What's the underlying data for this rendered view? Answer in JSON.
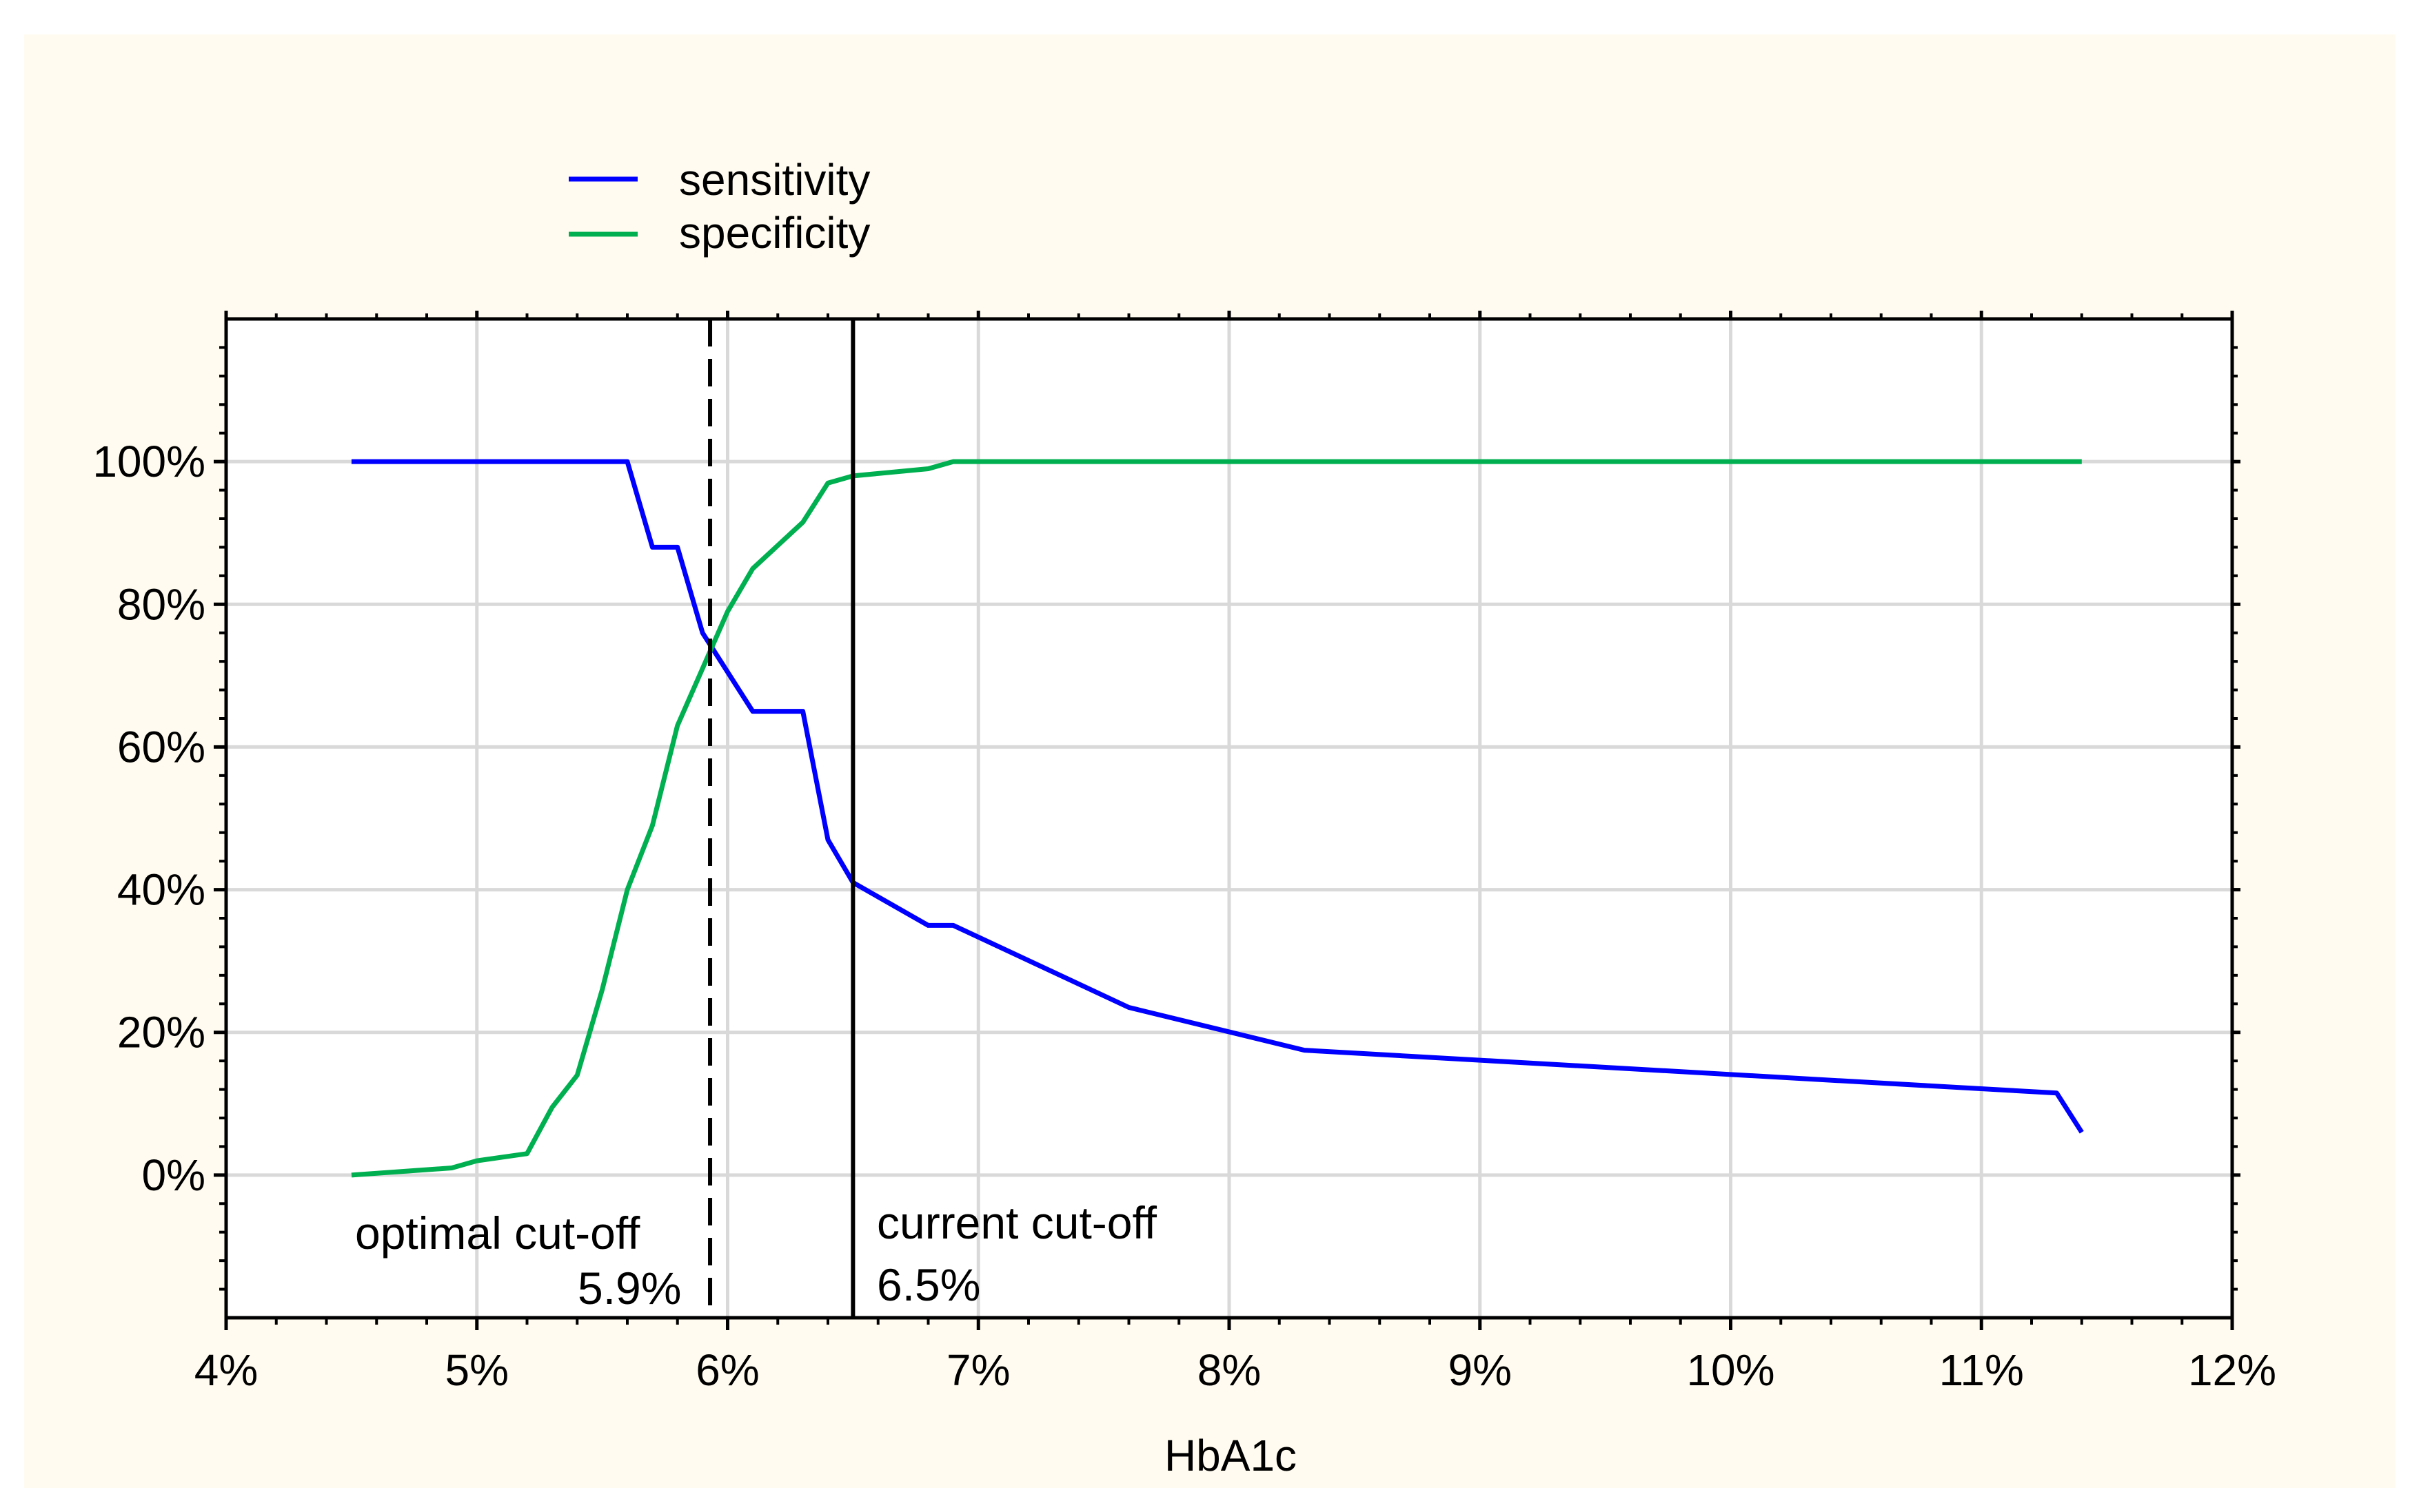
{
  "chart_data": {
    "type": "line",
    "xlabel": "HbA1c",
    "ylabel": "",
    "xlim": [
      4,
      12
    ],
    "ylim": [
      -20,
      120
    ],
    "x_tick_values": [
      4,
      5,
      6,
      7,
      8,
      9,
      10,
      11,
      12
    ],
    "x_tick_labels": [
      "4%",
      "5%",
      "6%",
      "7%",
      "8%",
      "9%",
      "10%",
      "11%",
      "12%"
    ],
    "y_tick_values": [
      0,
      20,
      40,
      60,
      80,
      100
    ],
    "y_tick_labels": [
      "0%",
      "20%",
      "40%",
      "60%",
      "80%",
      "100%"
    ],
    "grid": true,
    "legend_position": "top-left, above plot",
    "series": [
      {
        "name": "sensitivity",
        "color": "#0000ff",
        "x": [
          4.5,
          5.6,
          5.7,
          5.8,
          5.9,
          6.1,
          6.3,
          6.4,
          6.5,
          6.8,
          6.9,
          7.6,
          8.3,
          11.3,
          11.4
        ],
        "y": [
          100,
          100,
          88,
          88,
          76,
          65,
          65,
          47,
          41,
          35,
          35,
          23.5,
          17.5,
          11.5,
          6
        ]
      },
      {
        "name": "specificity",
        "color": "#00b050",
        "x": [
          4.5,
          4.9,
          5.0,
          5.2,
          5.3,
          5.4,
          5.5,
          5.6,
          5.7,
          5.8,
          5.9,
          6.0,
          6.1,
          6.3,
          6.4,
          6.5,
          6.8,
          6.9,
          11.4
        ],
        "y": [
          0,
          1,
          2,
          3,
          9.5,
          14,
          26,
          40,
          49,
          63,
          71,
          79,
          85,
          91.5,
          97,
          98,
          99,
          100,
          100
        ]
      }
    ],
    "reference_lines": [
      {
        "x": 5.93,
        "style": "dashed",
        "label_line1": "optimal  cut-off",
        "label_line2": "5.9%"
      },
      {
        "x": 6.5,
        "style": "solid",
        "label_line1": "current cut-off",
        "label_line2": "6.5%"
      }
    ]
  },
  "colors": {
    "outer_background": "#fffbf0",
    "plot_background": "#ffffff",
    "grid": "#d9d9d9",
    "axis": "#000000"
  }
}
